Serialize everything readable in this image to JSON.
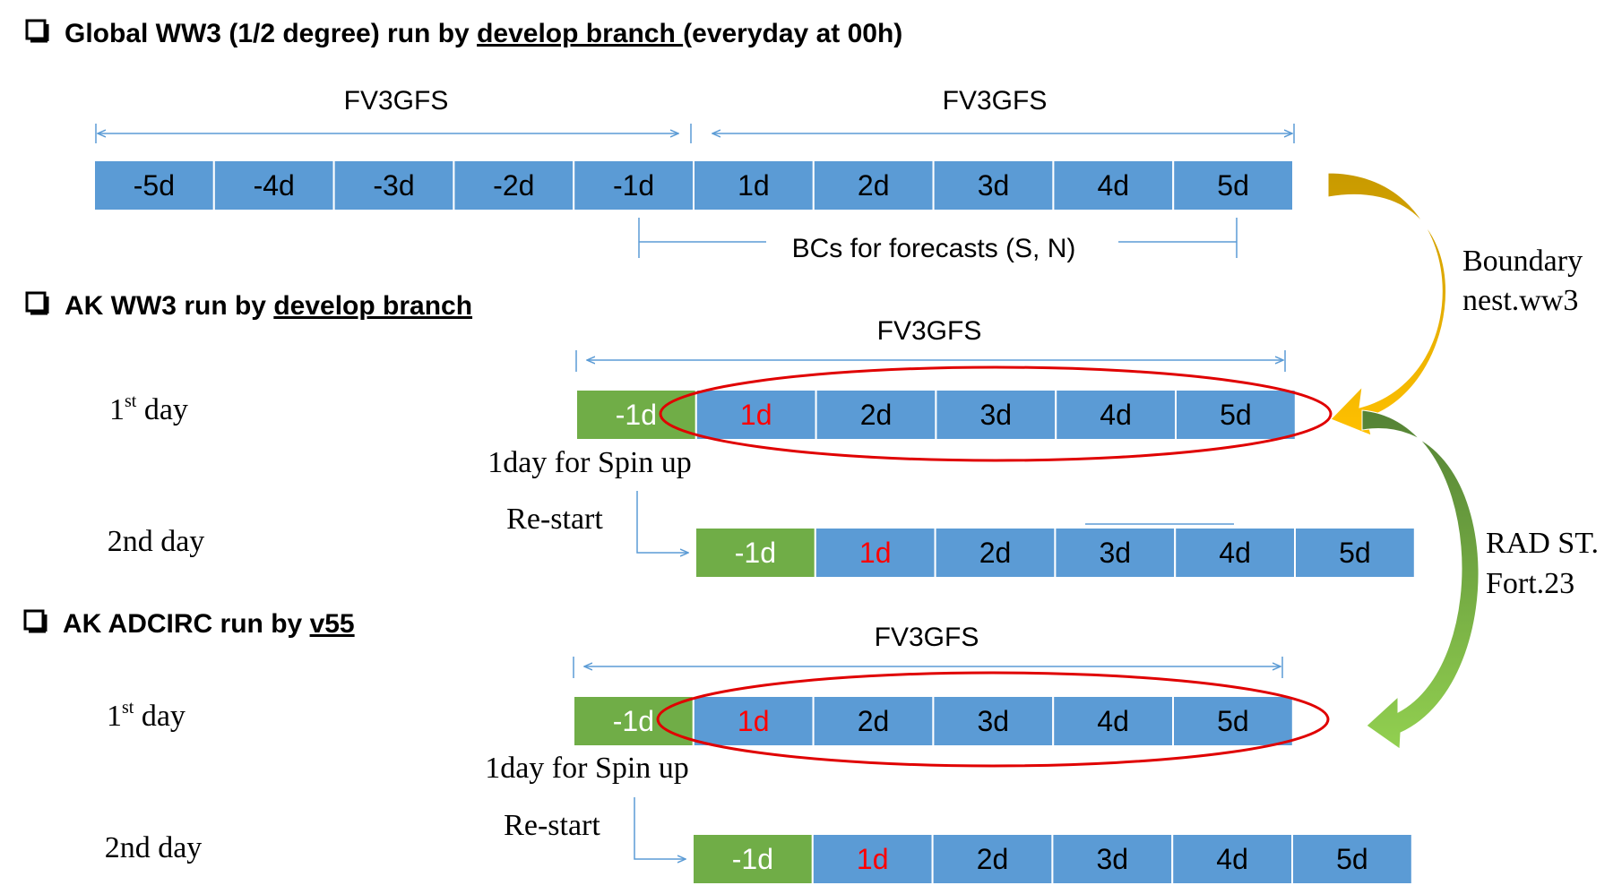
{
  "colors": {
    "cell_blue": "#5b9bd5",
    "cell_green": "#70ad47",
    "arrow_line": "#5b9bd5",
    "red_text": "#ff0000",
    "ellipse": "#e00000",
    "boundary_arrow_top": "#c89a00",
    "boundary_arrow_bottom": "#ffc000",
    "rad_arrow_top": "#548235",
    "rad_arrow_bottom": "#92d050"
  },
  "sections": {
    "global": {
      "title_prefix": "Global WW3 (1/2 degree) run by ",
      "title_link": "develop branch ",
      "title_suffix": "(everyday at 00h)",
      "span_left": "FV3GFS",
      "span_right": "FV3GFS",
      "cells": [
        "-5d",
        "-4d",
        "-3d",
        "-2d",
        "-1d",
        "1d",
        "2d",
        "3d",
        "4d",
        "5d"
      ],
      "bcs_label": "BCs for forecasts (S, N)"
    },
    "ak_ww3": {
      "title_prefix": "AK WW3 run by ",
      "title_link": "develop branch",
      "span": "FV3GFS",
      "day1_label": "1",
      "day1_sup": "st",
      "day1_suffix": " day",
      "row1_cells": [
        "-1d",
        "1d",
        "2d",
        "3d",
        "4d",
        "5d"
      ],
      "spin_up": "1day for Spin up",
      "restart": "Re-start",
      "day2_label": "2nd day",
      "row2_cells": [
        "-1d",
        "1d",
        "2d",
        "3d",
        "4d",
        "5d"
      ]
    },
    "ak_adcirc": {
      "title_prefix": "AK ADCIRC run by ",
      "title_link": "v55",
      "span": "FV3GFS",
      "day1_label": "1",
      "day1_sup": "st",
      "day1_suffix": " day",
      "row1_cells": [
        "-1d",
        "1d",
        "2d",
        "3d",
        "4d",
        "5d"
      ],
      "spin_up": "1day for Spin up",
      "restart": "Re-start",
      "day2_label": "2nd day",
      "row2_cells": [
        "-1d",
        "1d",
        "2d",
        "3d",
        "4d",
        "5d"
      ]
    }
  },
  "side_labels": {
    "boundary_line1": "Boundary",
    "boundary_line2": "nest.ww3",
    "rad_line1": "RAD ST.",
    "rad_line2": "Fort.23"
  }
}
